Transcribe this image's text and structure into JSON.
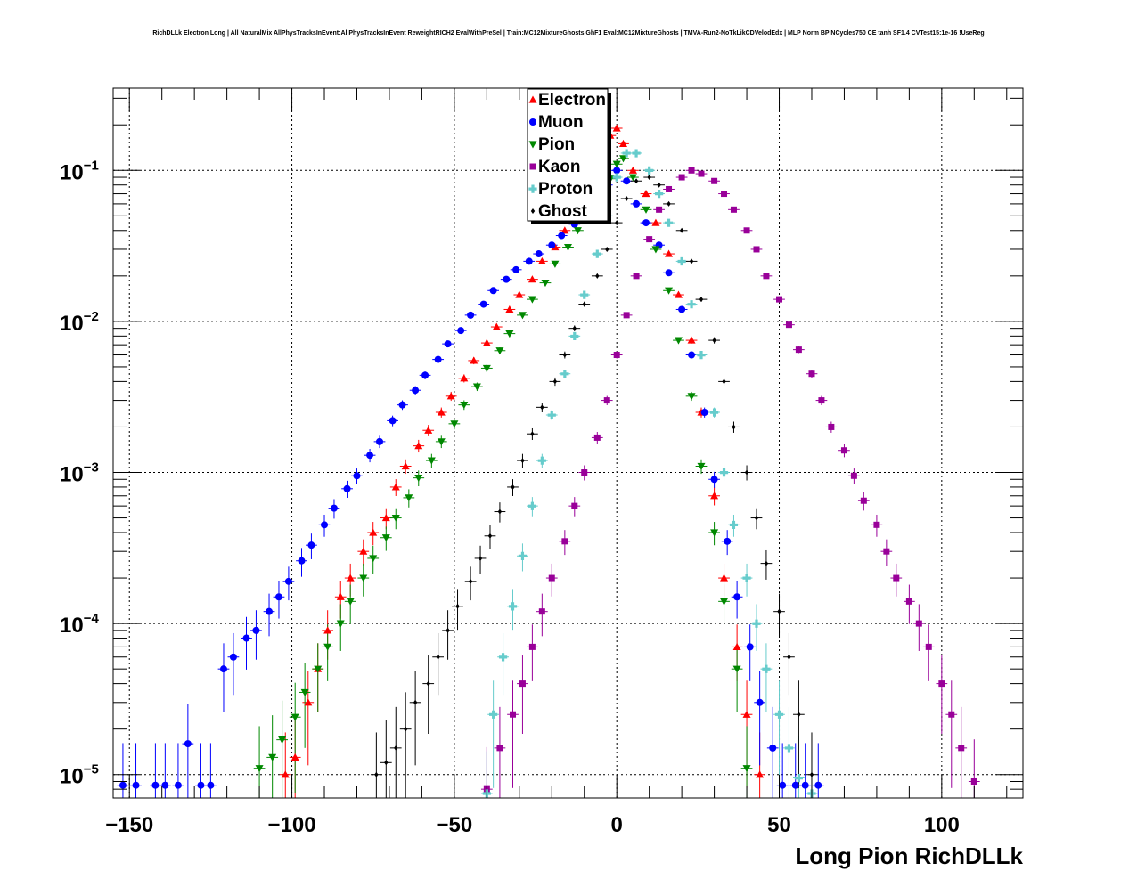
{
  "title": "RichDLLk Electron Long | All NaturalMix AllPhysTracksInEvent:AllPhysTracksInEvent ReweightRICH2 EvalWithPreSel | Train:MC12MixtureGhosts GhF1 Eval:MC12MixtureGhosts | TMVA-Run2-NoTkLikCDVelodEdx | MLP Norm BP NCycles750 CE tanh SF1.4 CVTest15:1e-16 !UseReg",
  "chart_data": {
    "type": "scatter",
    "title": "RichDLLk Electron Long | All NaturalMix AllPhysTracksInEvent:AllPhysTracksInEvent ReweightRICH2 EvalWithPreSel | Train:MC12MixtureGhosts GhF1 Eval:MC12MixtureGhosts | TMVA-Run2-NoTkLikCDVelodEdx | MLP Norm BP NCycles750 CE tanh SF1.4 CVTest15:1e-16 !UseReg",
    "xlabel": "Long Pion RichDLLk",
    "ylabel": "",
    "xlim": [
      -155,
      125
    ],
    "ylim": [
      7e-06,
      0.35
    ],
    "yscale": "log",
    "grid": true,
    "legend_position": "top-center",
    "xticks": [
      "−150",
      "−100",
      "−50",
      "0",
      "50",
      "100"
    ],
    "yticks": [
      {
        "base": "10",
        "exp": "−1",
        "value": 0.1
      },
      {
        "base": "10",
        "exp": "−2",
        "value": 0.01
      },
      {
        "base": "10",
        "exp": "−3",
        "value": 0.001
      },
      {
        "base": "10",
        "exp": "−4",
        "value": 0.0001
      },
      {
        "base": "10",
        "exp": "−5",
        "value": 1e-05
      }
    ],
    "series": [
      {
        "name": "Electron",
        "color": "#ff0000",
        "marker": "triangle-up",
        "x": [
          -102,
          -99,
          -95,
          -92,
          -89,
          -85,
          -82,
          -78,
          -75,
          -71,
          -68,
          -65,
          -61,
          -58,
          -54,
          -51,
          -47,
          -44,
          -40,
          -37,
          -33,
          -30,
          -26,
          -23,
          -19,
          -16,
          -12,
          -9,
          -5,
          -2,
          0,
          2,
          5,
          9,
          12,
          16,
          19,
          23,
          26,
          30,
          33,
          37,
          40,
          44
        ],
        "y": [
          1e-05,
          1.3e-05,
          3e-05,
          5e-05,
          9e-05,
          0.00015,
          0.0002,
          0.0003,
          0.0004,
          0.0005,
          0.0008,
          0.0011,
          0.0015,
          0.0019,
          0.0025,
          0.0032,
          0.0042,
          0.0055,
          0.0072,
          0.0092,
          0.012,
          0.015,
          0.019,
          0.025,
          0.031,
          0.04,
          0.055,
          0.08,
          0.12,
          0.17,
          0.19,
          0.15,
          0.1,
          0.07,
          0.045,
          0.028,
          0.015,
          0.0075,
          0.0025,
          0.0007,
          0.0002,
          7e-05,
          2.5e-05,
          1e-05
        ]
      },
      {
        "name": "Muon",
        "color": "#0000ff",
        "marker": "circle",
        "x": [
          -152,
          -148,
          -142,
          -139,
          -135,
          -132,
          -128,
          -125,
          -121,
          -118,
          -114,
          -111,
          -107,
          -104,
          -101,
          -97,
          -94,
          -90,
          -87,
          -83,
          -80,
          -76,
          -73,
          -69,
          -66,
          -62,
          -59,
          -55,
          -52,
          -48,
          -45,
          -41,
          -38,
          -34,
          -31,
          -27,
          -24,
          -20,
          -17,
          -13,
          -10,
          -6,
          -3,
          0,
          3,
          6,
          9,
          13,
          16,
          20,
          23,
          27,
          30,
          34,
          37,
          41,
          44,
          48,
          51,
          55,
          58,
          62
        ],
        "y": [
          8.5e-06,
          8.5e-06,
          8.5e-06,
          8.5e-06,
          8.5e-06,
          1.6e-05,
          8.5e-06,
          8.5e-06,
          5e-05,
          6e-05,
          8e-05,
          9e-05,
          0.00012,
          0.00015,
          0.00019,
          0.00026,
          0.00033,
          0.00045,
          0.00058,
          0.00078,
          0.00095,
          0.0013,
          0.0016,
          0.0022,
          0.0028,
          0.0035,
          0.0044,
          0.0056,
          0.0071,
          0.0087,
          0.011,
          0.013,
          0.016,
          0.019,
          0.022,
          0.025,
          0.028,
          0.032,
          0.037,
          0.044,
          0.053,
          0.065,
          0.08,
          0.1,
          0.085,
          0.06,
          0.045,
          0.032,
          0.021,
          0.012,
          0.006,
          0.0025,
          0.0009,
          0.00035,
          0.00015,
          7e-05,
          3e-05,
          1.5e-05,
          8.5e-06,
          8.5e-06,
          8.5e-06,
          8.5e-06
        ]
      },
      {
        "name": "Pion",
        "color": "#008800",
        "marker": "triangle-down",
        "x": [
          -110,
          -106,
          -103,
          -99,
          -96,
          -92,
          -89,
          -85,
          -82,
          -78,
          -75,
          -71,
          -68,
          -64,
          -61,
          -57,
          -54,
          -50,
          -47,
          -43,
          -40,
          -36,
          -33,
          -29,
          -26,
          -22,
          -19,
          -15,
          -12,
          -8,
          -5,
          -2,
          0,
          2,
          5,
          9,
          12,
          16,
          19,
          23,
          26,
          30,
          33,
          37,
          40
        ],
        "y": [
          1.1e-05,
          1.3e-05,
          1.7e-05,
          2.4e-05,
          3.5e-05,
          5e-05,
          7e-05,
          0.0001,
          0.00014,
          0.0002,
          0.00027,
          0.00037,
          0.0005,
          0.00068,
          0.00092,
          0.0012,
          0.0016,
          0.0021,
          0.0028,
          0.0037,
          0.0049,
          0.0064,
          0.0083,
          0.011,
          0.014,
          0.018,
          0.024,
          0.031,
          0.04,
          0.052,
          0.068,
          0.088,
          0.11,
          0.12,
          0.09,
          0.055,
          0.03,
          0.016,
          0.0075,
          0.0032,
          0.0011,
          0.0004,
          0.00014,
          5e-05,
          1.1e-05
        ]
      },
      {
        "name": "Kaon",
        "color": "#990099",
        "marker": "square",
        "x": [
          -40,
          -36,
          -32,
          -29,
          -26,
          -23,
          -20,
          -16,
          -13,
          -10,
          -6,
          -3,
          0,
          3,
          6,
          10,
          13,
          16,
          20,
          23,
          26,
          30,
          33,
          36,
          40,
          43,
          46,
          50,
          53,
          56,
          60,
          63,
          66,
          70,
          73,
          76,
          80,
          83,
          86,
          90,
          93,
          96,
          100,
          103,
          106,
          110
        ],
        "y": [
          8e-06,
          1.5e-05,
          2.5e-05,
          4e-05,
          7e-05,
          0.00012,
          0.0002,
          0.00035,
          0.0006,
          0.001,
          0.0017,
          0.003,
          0.006,
          0.011,
          0.02,
          0.035,
          0.055,
          0.075,
          0.09,
          0.1,
          0.095,
          0.085,
          0.07,
          0.055,
          0.04,
          0.03,
          0.02,
          0.014,
          0.0095,
          0.0065,
          0.0045,
          0.003,
          0.002,
          0.0014,
          0.00095,
          0.00065,
          0.00045,
          0.0003,
          0.0002,
          0.00014,
          0.0001,
          7e-05,
          4e-05,
          2.5e-05,
          1.5e-05,
          9e-06
        ]
      },
      {
        "name": "Proton",
        "color": "#66cccc",
        "marker": "cross",
        "x": [
          -40,
          -38,
          -35,
          -32,
          -29,
          -26,
          -23,
          -20,
          -16,
          -13,
          -10,
          -6,
          -3,
          0,
          3,
          6,
          10,
          13,
          16,
          20,
          23,
          26,
          30,
          33,
          36,
          40,
          43,
          46,
          50,
          53,
          56,
          60
        ],
        "y": [
          7.5e-06,
          2.5e-05,
          6e-05,
          0.00013,
          0.00028,
          0.0006,
          0.0012,
          0.0024,
          0.0045,
          0.008,
          0.015,
          0.028,
          0.05,
          0.09,
          0.13,
          0.13,
          0.1,
          0.07,
          0.045,
          0.025,
          0.013,
          0.006,
          0.0025,
          0.001,
          0.00045,
          0.0002,
          0.0001,
          5e-05,
          2.5e-05,
          1.5e-05,
          9.5e-06,
          7.5e-06
        ]
      },
      {
        "name": "Ghost",
        "color": "#000000",
        "marker": "diamond",
        "x": [
          -74,
          -71,
          -68,
          -65,
          -62,
          -58,
          -55,
          -52,
          -49,
          -45,
          -42,
          -39,
          -36,
          -32,
          -29,
          -26,
          -23,
          -19,
          -16,
          -13,
          -10,
          -6,
          -3,
          0,
          3,
          6,
          10,
          13,
          16,
          20,
          23,
          26,
          30,
          33,
          36,
          40,
          43,
          46,
          50,
          53,
          56,
          60
        ],
        "y": [
          1e-05,
          1.2e-05,
          1.5e-05,
          2e-05,
          3e-05,
          4e-05,
          6e-05,
          9e-05,
          0.00013,
          0.00019,
          0.00027,
          0.00038,
          0.00055,
          0.0008,
          0.0012,
          0.0018,
          0.0027,
          0.004,
          0.006,
          0.009,
          0.013,
          0.02,
          0.03,
          0.045,
          0.065,
          0.085,
          0.09,
          0.08,
          0.06,
          0.04,
          0.025,
          0.014,
          0.0075,
          0.004,
          0.002,
          0.001,
          0.0005,
          0.00025,
          0.00012,
          6e-05,
          2.5e-05,
          1e-05
        ]
      }
    ]
  }
}
